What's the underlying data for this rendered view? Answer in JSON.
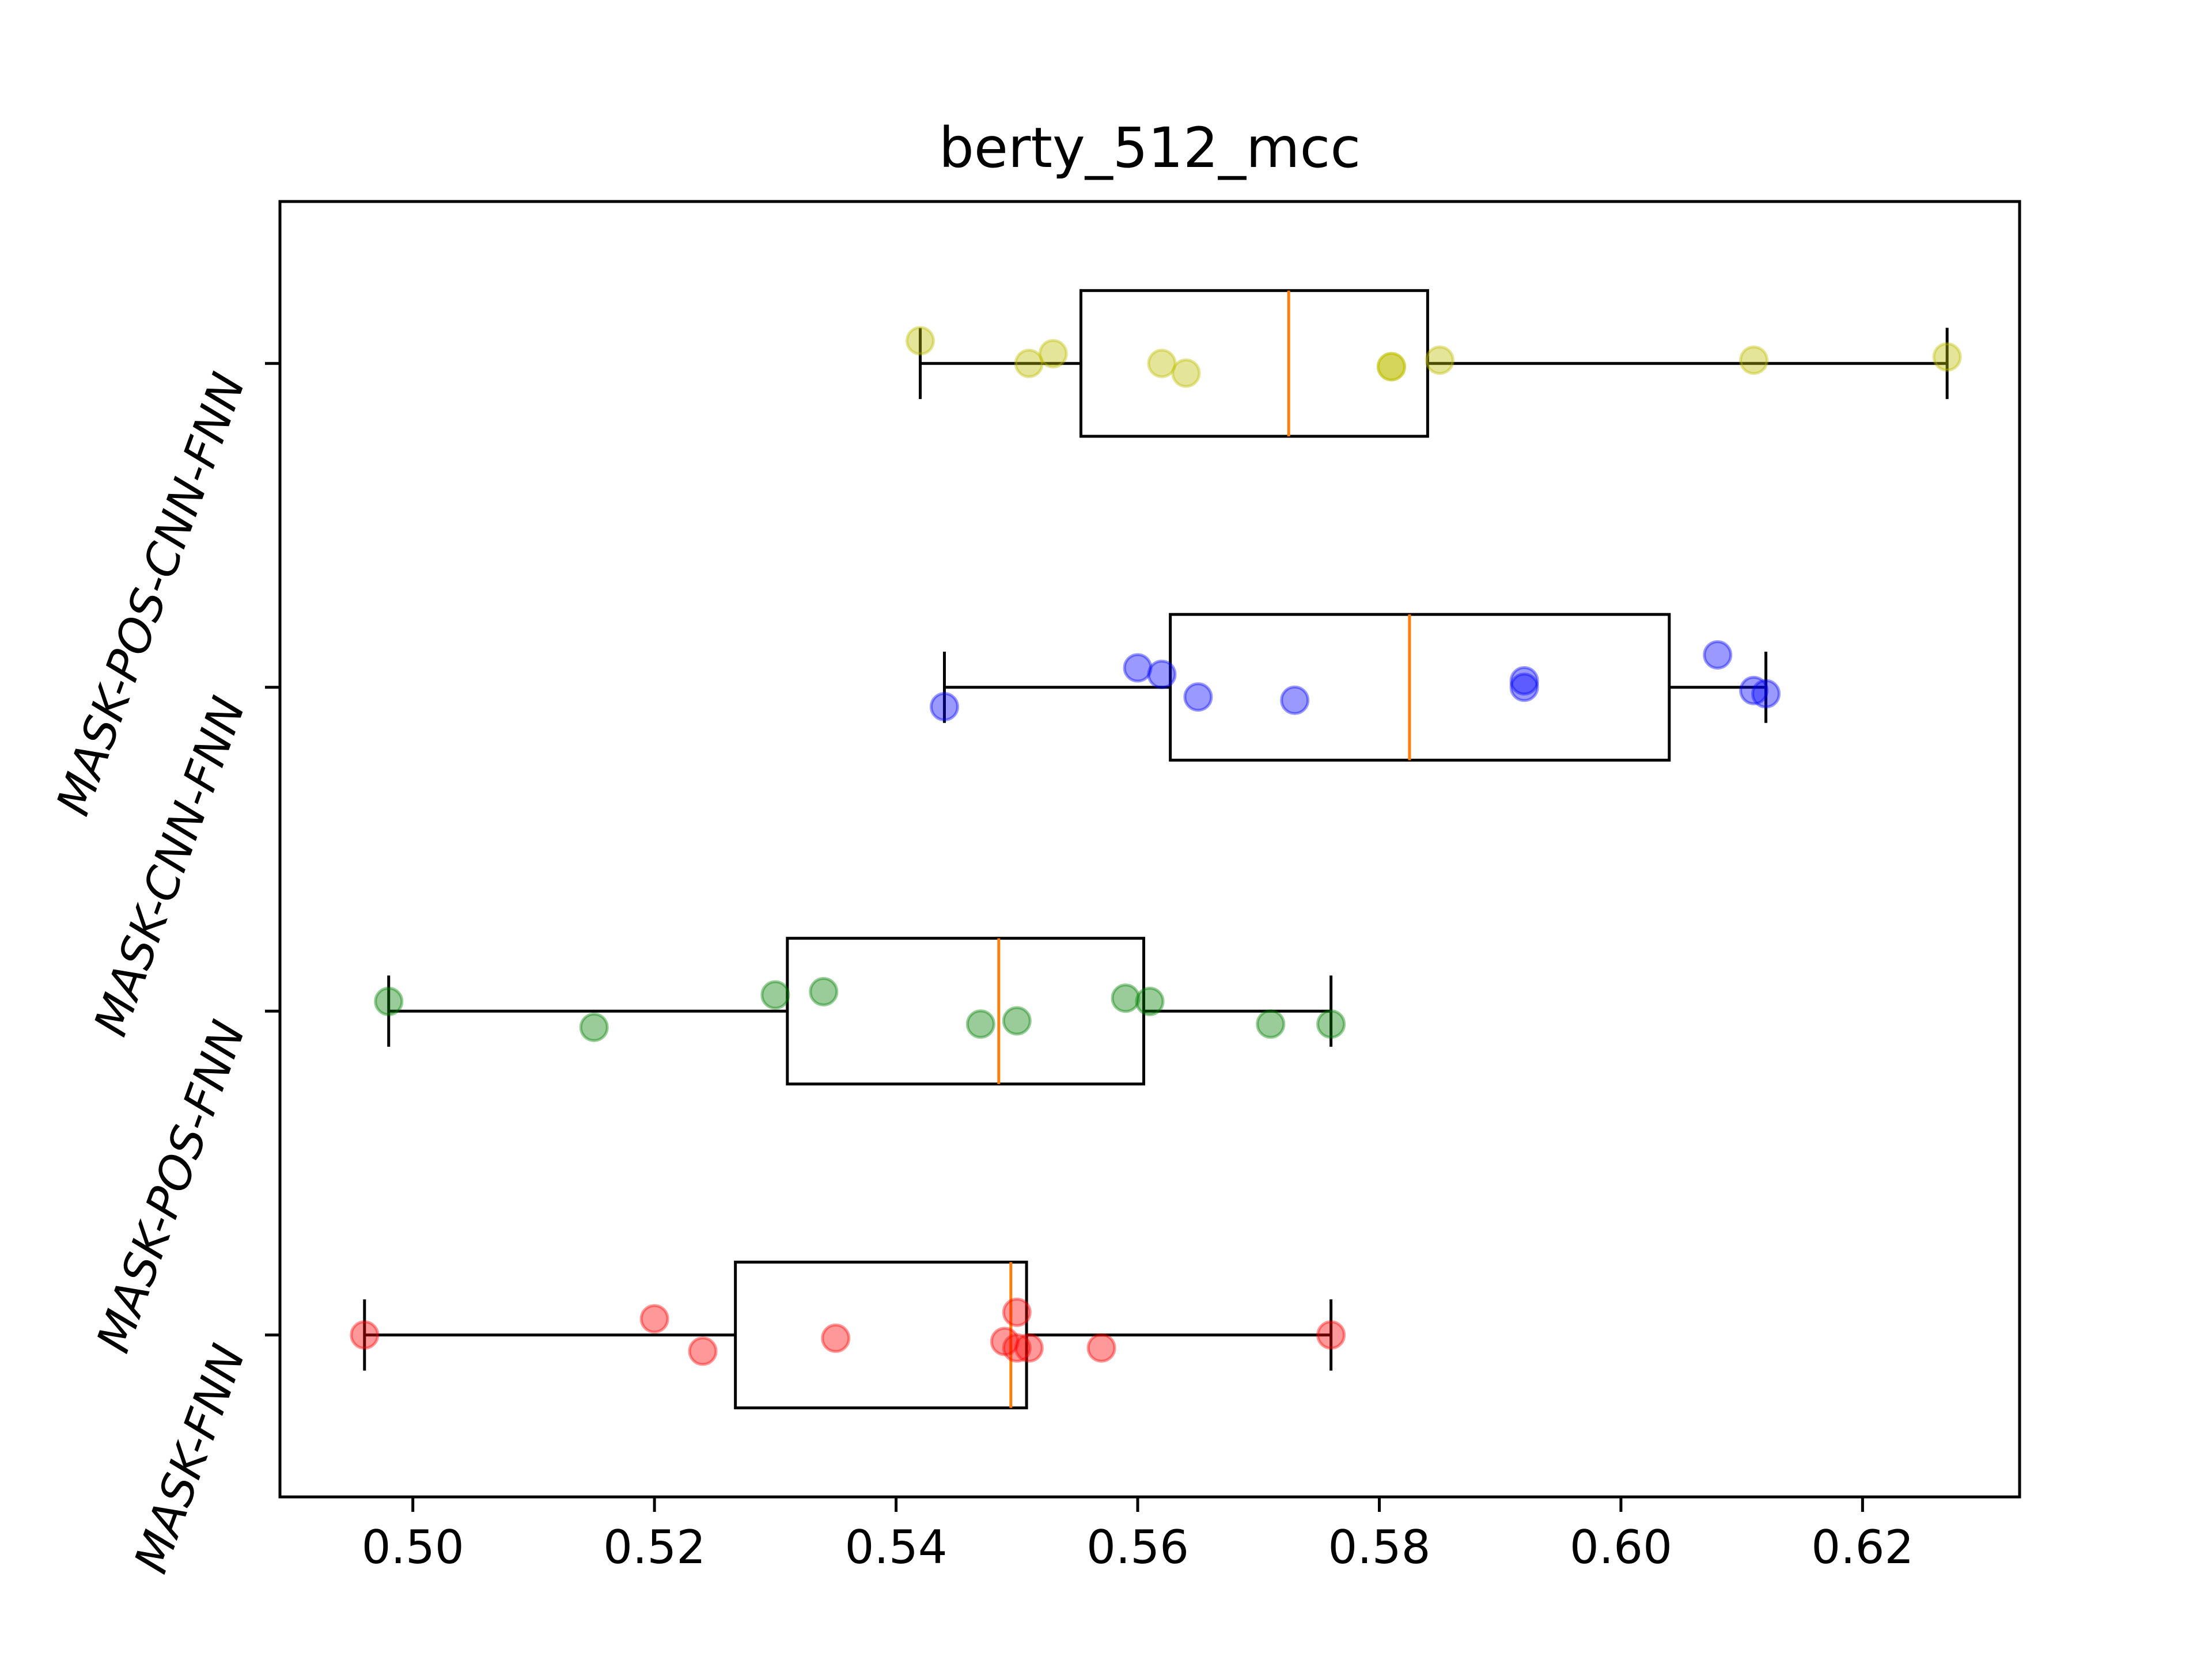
{
  "chart_data": {
    "type": "box",
    "title": "berty_512_mcc",
    "xlabel": "",
    "ylabel": "",
    "xlim": [
      0.489,
      0.633
    ],
    "x_ticks": [
      0.5,
      0.52,
      0.54,
      0.56,
      0.58,
      0.6,
      0.62
    ],
    "x_tick_labels": [
      "0.50",
      "0.52",
      "0.54",
      "0.56",
      "0.58",
      "0.60",
      "0.62"
    ],
    "orientation": "horizontal",
    "grid": false,
    "legend": "none",
    "series": [
      {
        "name": "MASK-FNN",
        "color": "#ff0000",
        "box": {
          "whisker_low": 0.496,
          "q1": 0.5267,
          "median": 0.5495,
          "q3": 0.5508,
          "whisker_high": 0.576
        },
        "points": [
          {
            "x": 0.496,
            "jitter": 0.0
          },
          {
            "x": 0.52,
            "jitter": 0.05
          },
          {
            "x": 0.524,
            "jitter": -0.05
          },
          {
            "x": 0.535,
            "jitter": -0.01
          },
          {
            "x": 0.549,
            "jitter": -0.02
          },
          {
            "x": 0.55,
            "jitter": 0.07
          },
          {
            "x": 0.55,
            "jitter": -0.04
          },
          {
            "x": 0.551,
            "jitter": -0.04
          },
          {
            "x": 0.557,
            "jitter": -0.04
          },
          {
            "x": 0.576,
            "jitter": 0.0
          }
        ]
      },
      {
        "name": "MASK-POS-FNN",
        "color": "#008000",
        "box": {
          "whisker_low": 0.498,
          "q1": 0.531,
          "median": 0.5485,
          "q3": 0.5605,
          "whisker_high": 0.576
        },
        "points": [
          {
            "x": 0.498,
            "jitter": 0.03
          },
          {
            "x": 0.515,
            "jitter": -0.05
          },
          {
            "x": 0.53,
            "jitter": 0.05
          },
          {
            "x": 0.534,
            "jitter": 0.06
          },
          {
            "x": 0.547,
            "jitter": -0.04
          },
          {
            "x": 0.55,
            "jitter": -0.03
          },
          {
            "x": 0.559,
            "jitter": 0.04
          },
          {
            "x": 0.561,
            "jitter": 0.03
          },
          {
            "x": 0.571,
            "jitter": -0.04
          },
          {
            "x": 0.576,
            "jitter": -0.04
          }
        ]
      },
      {
        "name": "MASK-CNN-FNN",
        "color": "#0000ff",
        "box": {
          "whisker_low": 0.544,
          "q1": 0.5627,
          "median": 0.5825,
          "q3": 0.604,
          "whisker_high": 0.612
        },
        "points": [
          {
            "x": 0.544,
            "jitter": -0.06
          },
          {
            "x": 0.56,
            "jitter": 0.06
          },
          {
            "x": 0.562,
            "jitter": 0.04
          },
          {
            "x": 0.565,
            "jitter": -0.03
          },
          {
            "x": 0.573,
            "jitter": -0.04
          },
          {
            "x": 0.592,
            "jitter": 0.02
          },
          {
            "x": 0.592,
            "jitter": 0.0
          },
          {
            "x": 0.608,
            "jitter": 0.1
          },
          {
            "x": 0.611,
            "jitter": -0.01
          },
          {
            "x": 0.612,
            "jitter": -0.02
          }
        ]
      },
      {
        "name": "MASK-POS-CNN-FNN",
        "color": "#bfbf00",
        "box": {
          "whisker_low": 0.542,
          "q1": 0.5553,
          "median": 0.5725,
          "q3": 0.584,
          "whisker_high": 0.627
        },
        "points": [
          {
            "x": 0.542,
            "jitter": 0.07
          },
          {
            "x": 0.551,
            "jitter": 0.0
          },
          {
            "x": 0.553,
            "jitter": 0.03
          },
          {
            "x": 0.562,
            "jitter": 0.0
          },
          {
            "x": 0.564,
            "jitter": -0.03
          },
          {
            "x": 0.581,
            "jitter": -0.01
          },
          {
            "x": 0.581,
            "jitter": -0.01
          },
          {
            "x": 0.585,
            "jitter": 0.01
          },
          {
            "x": 0.611,
            "jitter": 0.01
          },
          {
            "x": 0.627,
            "jitter": 0.02
          }
        ]
      }
    ],
    "median_color": "#ff7f0e"
  }
}
